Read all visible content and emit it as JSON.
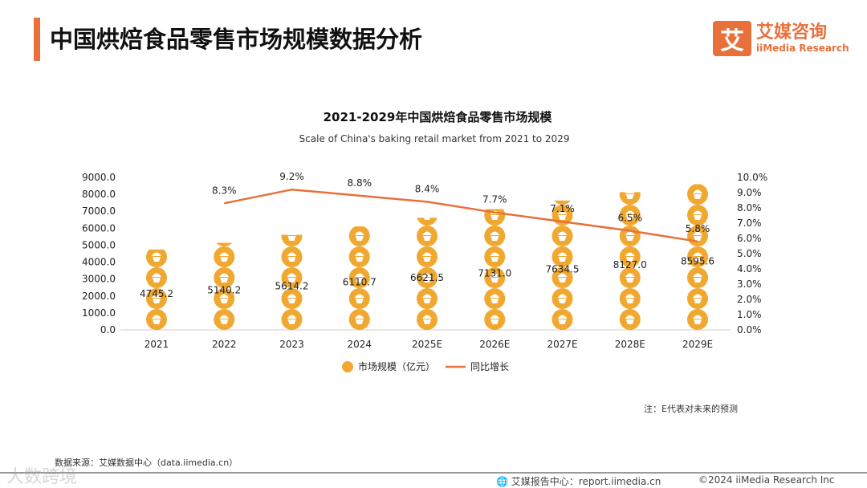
{
  "header": {
    "title": "中国烘焙食品零售市场规模数据分析",
    "logo_icon": "艾",
    "logo_cn": "艾媒咨询",
    "logo_en": "iiMedia Research"
  },
  "chart_data": {
    "type": "bar+line",
    "title": "2021-2029年中国烘焙食品零售市场规模",
    "subtitle": "Scale of China's baking retail market from 2021 to 2029",
    "categories": [
      "2021",
      "2022",
      "2023",
      "2024",
      "2025E",
      "2026E",
      "2027E",
      "2028E",
      "2029E"
    ],
    "series": [
      {
        "name": "市场规模（亿元）",
        "type": "pictograph-bar",
        "axis": "left",
        "color": "#f0a830",
        "values": [
          4745.2,
          5140.2,
          5614.2,
          6110.7,
          6621.5,
          7131.0,
          7634.5,
          8127.0,
          8595.6
        ],
        "labels": [
          "4745.2",
          "5140.2",
          "5614.2",
          "6110.7",
          "6621.5",
          "7131.0",
          "7634.5",
          "8127.0",
          "8595.6"
        ]
      },
      {
        "name": "同比增长",
        "type": "line",
        "axis": "right",
        "color": "#e8703a",
        "values": [
          null,
          8.3,
          9.2,
          8.8,
          8.4,
          7.7,
          7.1,
          6.5,
          5.8
        ],
        "labels": [
          "",
          "8.3%",
          "9.2%",
          "8.8%",
          "8.4%",
          "7.7%",
          "7.1%",
          "6.5%",
          "5.8%"
        ]
      }
    ],
    "y_left": {
      "range": [
        0,
        9000
      ],
      "ticks": [
        "0.0",
        "1000.0",
        "2000.0",
        "3000.0",
        "4000.0",
        "5000.0",
        "6000.0",
        "7000.0",
        "8000.0",
        "9000.0"
      ]
    },
    "y_right": {
      "range": [
        0,
        10
      ],
      "ticks": [
        "0.0%",
        "1.0%",
        "2.0%",
        "3.0%",
        "4.0%",
        "5.0%",
        "6.0%",
        "7.0%",
        "8.0%",
        "9.0%",
        "10.0%"
      ]
    },
    "legend_position": "bottom"
  },
  "note": "注：E代表对未来的预测",
  "source": "数据来源：艾媒数据中心（data.iimedia.cn）",
  "footer": {
    "report": "艾媒报告中心：report.iimedia.cn",
    "copyright": "©2024  iiMedia Research  Inc"
  },
  "watermark": "大数跨境"
}
